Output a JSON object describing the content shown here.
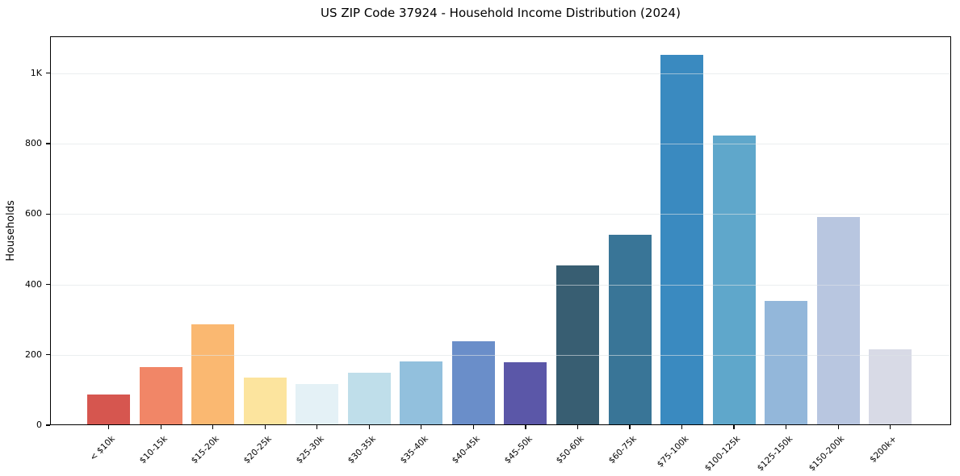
{
  "figure": {
    "title": "US ZIP Code 37924 - Household Income Distribution (2024)"
  },
  "chart_data": {
    "type": "bar",
    "title": "US ZIP Code 37924 - Household Income Distribution (2024)",
    "xlabel": "",
    "ylabel": "Households",
    "categories": [
      "< $10k",
      "$10-15k",
      "$15-20k",
      "$20-25k",
      "$25-30k",
      "$30-35k",
      "$35-40k",
      "$40-45k",
      "$45-50k",
      "$50-60k",
      "$60-75k",
      "$75-100k",
      "$100-125k",
      "$125-150k",
      "$150-200k",
      "$200k+"
    ],
    "values": [
      88,
      165,
      287,
      135,
      117,
      149,
      181,
      239,
      178,
      455,
      540,
      1053,
      824,
      354,
      592,
      215
    ],
    "bar_colors": [
      "#d6564f",
      "#f18667",
      "#fab871",
      "#fce49e",
      "#e4f1f6",
      "#bfdeea",
      "#92c0dd",
      "#6a8ec9",
      "#5b57a8",
      "#385e72",
      "#397597",
      "#3a8ac0",
      "#5fa7cb",
      "#93b7da",
      "#b8c6e0",
      "#d8dae6"
    ],
    "ylim": [
      0,
      1105
    ],
    "yticks": [
      {
        "v": 0,
        "label": "0"
      },
      {
        "v": 200,
        "label": "200"
      },
      {
        "v": 400,
        "label": "400"
      },
      {
        "v": 600,
        "label": "600"
      },
      {
        "v": 800,
        "label": "800"
      },
      {
        "v": 1000,
        "label": "1K"
      }
    ],
    "grid": "horizontal-light",
    "legend": "none"
  }
}
